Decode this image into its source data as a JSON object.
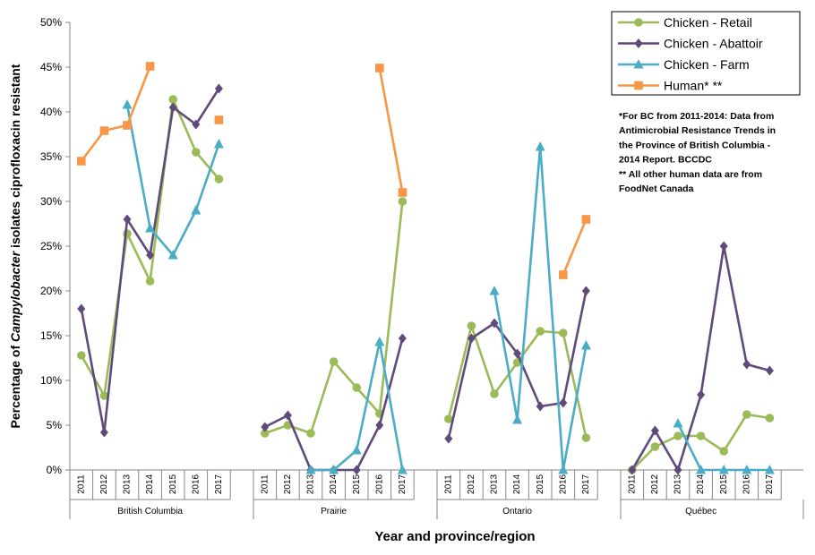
{
  "chart_data": {
    "type": "line",
    "title": "",
    "xlabel": "Year and province/region",
    "ylabel": "Percentage of Campylobacter isolates ciprofloxacin resistant",
    "ylabel_parts": [
      "Percentage of ",
      "Campylobacter",
      " isolates ciprofloxacin resistant"
    ],
    "ylim": [
      0,
      50
    ],
    "yticks": [
      "0%",
      "5%",
      "10%",
      "15%",
      "20%",
      "25%",
      "30%",
      "35%",
      "40%",
      "45%",
      "50%"
    ],
    "groups": [
      {
        "name": "British Columbia",
        "years": [
          "2011",
          "2012",
          "2013",
          "2014",
          "2015",
          "2016",
          "2017"
        ]
      },
      {
        "name": "Prairie",
        "years": [
          "2011",
          "2012",
          "2013",
          "2014",
          "2015",
          "2016",
          "2017"
        ]
      },
      {
        "name": "Ontario",
        "years": [
          "2011",
          "2012",
          "2013",
          "2014",
          "2015",
          "2016",
          "2017"
        ]
      },
      {
        "name": "Québec",
        "years": [
          "2011",
          "2012",
          "2013",
          "2014",
          "2015",
          "2016",
          "2017"
        ]
      }
    ],
    "series": [
      {
        "name": "Chicken - Retail",
        "color": "#9BBB59",
        "marker": "circle",
        "values": [
          [
            12.8,
            8.3,
            26.4,
            21.1,
            41.4,
            35.5,
            32.5
          ],
          [
            4.1,
            5.0,
            4.1,
            12.1,
            9.2,
            6.3,
            30.0
          ],
          [
            5.7,
            16.1,
            8.5,
            12.0,
            15.5,
            15.3,
            3.6
          ],
          [
            0.0,
            2.6,
            3.8,
            3.8,
            2.1,
            6.2,
            5.8
          ]
        ]
      },
      {
        "name": "Chicken - Abattoir",
        "color": "#604A7B",
        "marker": "diamond",
        "values": [
          [
            18.0,
            4.2,
            28.0,
            24.0,
            40.5,
            38.6,
            42.6
          ],
          [
            4.8,
            6.1,
            0.0,
            0.0,
            0.0,
            5.0,
            14.7
          ],
          [
            3.5,
            14.7,
            16.4,
            13.0,
            7.1,
            7.5,
            20.0
          ],
          [
            0.0,
            4.4,
            0.0,
            8.4,
            25.0,
            11.8,
            11.1
          ]
        ]
      },
      {
        "name": "Chicken - Farm",
        "color": "#4BACC6",
        "marker": "triangle",
        "values": [
          [
            null,
            null,
            40.8,
            27.0,
            24.0,
            29.0,
            36.4
          ],
          [
            null,
            null,
            0.0,
            0.0,
            2.2,
            14.3,
            0.0
          ],
          [
            null,
            null,
            20.0,
            5.6,
            36.1,
            0.0,
            13.9
          ],
          [
            null,
            null,
            5.2,
            0.0,
            0.0,
            0.0,
            0.0
          ]
        ]
      },
      {
        "name": "Human*  **",
        "color": "#F79646",
        "marker": "square",
        "values": [
          [
            34.5,
            37.9,
            38.5,
            45.1,
            null,
            null,
            39.1
          ],
          [
            null,
            null,
            null,
            null,
            null,
            44.9,
            31.0
          ],
          [
            null,
            null,
            null,
            null,
            null,
            21.8,
            28.0
          ],
          [
            null,
            null,
            null,
            null,
            null,
            null,
            null
          ]
        ]
      }
    ],
    "legend_position": "top-right",
    "annotation": [
      "*For BC from 2011-2014: Data from",
      "Antimicrobial Resistance Trends in",
      "the Province of British Columbia -",
      "2014 Report. BCCDC",
      "** All other human data are from",
      "FoodNet Canada"
    ],
    "grid": false
  }
}
